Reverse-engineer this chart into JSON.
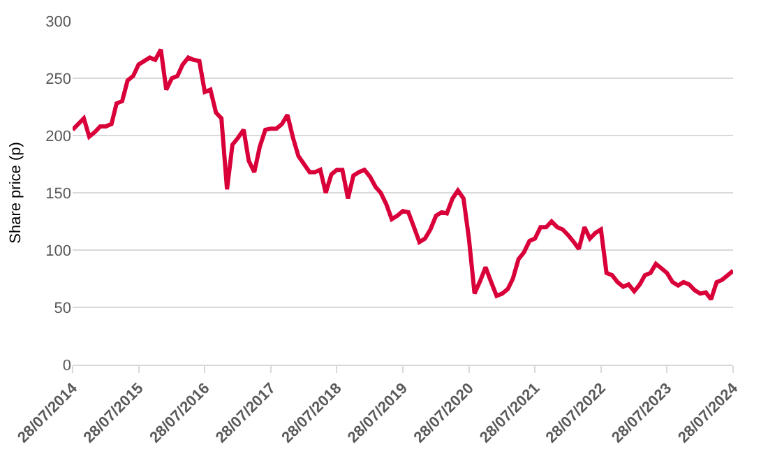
{
  "chart_data": {
    "type": "line",
    "ylabel": "Share price (p)",
    "x": [
      "2014-07-28",
      "2014-08-28",
      "2014-09-28",
      "2014-10-28",
      "2014-11-28",
      "2014-12-28",
      "2015-01-28",
      "2015-02-28",
      "2015-03-28",
      "2015-04-28",
      "2015-05-28",
      "2015-06-28",
      "2015-07-28",
      "2015-08-28",
      "2015-09-28",
      "2015-10-28",
      "2015-11-28",
      "2015-12-28",
      "2016-01-28",
      "2016-02-28",
      "2016-03-28",
      "2016-04-28",
      "2016-05-28",
      "2016-06-28",
      "2016-07-28",
      "2016-08-28",
      "2016-09-28",
      "2016-10-28",
      "2016-11-28",
      "2016-12-28",
      "2017-01-28",
      "2017-02-28",
      "2017-03-28",
      "2017-04-28",
      "2017-05-28",
      "2017-06-28",
      "2017-07-28",
      "2017-08-28",
      "2017-09-28",
      "2017-10-28",
      "2017-11-28",
      "2017-12-28",
      "2018-01-28",
      "2018-02-28",
      "2018-03-28",
      "2018-04-28",
      "2018-05-28",
      "2018-06-28",
      "2018-07-28",
      "2018-08-28",
      "2018-09-28",
      "2018-10-28",
      "2018-11-28",
      "2018-12-28",
      "2019-01-28",
      "2019-02-28",
      "2019-03-28",
      "2019-04-28",
      "2019-05-28",
      "2019-06-28",
      "2019-07-28",
      "2019-08-28",
      "2019-09-28",
      "2019-10-28",
      "2019-11-28",
      "2019-12-28",
      "2020-01-28",
      "2020-02-28",
      "2020-03-28",
      "2020-04-28",
      "2020-05-28",
      "2020-06-28",
      "2020-07-28",
      "2020-08-28",
      "2020-09-28",
      "2020-10-28",
      "2020-11-28",
      "2020-12-28",
      "2021-01-28",
      "2021-02-28",
      "2021-03-28",
      "2021-04-28",
      "2021-05-28",
      "2021-06-28",
      "2021-07-28",
      "2021-08-28",
      "2021-09-28",
      "2021-10-28",
      "2021-11-28",
      "2021-12-28",
      "2022-01-28",
      "2022-02-28",
      "2022-03-28",
      "2022-04-28",
      "2022-05-28",
      "2022-06-28",
      "2022-07-28",
      "2022-08-28",
      "2022-09-28",
      "2022-10-28",
      "2022-11-28",
      "2022-12-28",
      "2023-01-28",
      "2023-02-28",
      "2023-03-28",
      "2023-04-28",
      "2023-05-28",
      "2023-06-28",
      "2023-07-28",
      "2023-08-28",
      "2023-09-28",
      "2023-10-28",
      "2023-11-28",
      "2023-12-28",
      "2024-01-28",
      "2024-02-28",
      "2024-03-28",
      "2024-04-28",
      "2024-05-28",
      "2024-06-28",
      "2024-07-28"
    ],
    "series": [
      {
        "color": "#d9003a",
        "values": [
          205,
          210,
          215,
          199,
          203,
          208,
          208,
          210,
          228,
          230,
          248,
          252,
          262,
          265,
          268,
          266,
          275,
          240,
          250,
          252,
          262,
          268,
          266,
          265,
          238,
          240,
          220,
          215,
          153,
          192,
          198,
          205,
          178,
          168,
          190,
          205,
          206,
          206,
          210,
          218,
          198,
          182,
          175,
          168,
          168,
          170,
          150,
          166,
          170,
          170,
          145,
          165,
          168,
          170,
          164,
          155,
          150,
          140,
          127,
          130,
          134,
          133,
          120,
          107,
          110,
          118,
          130,
          133,
          132,
          145,
          152,
          145,
          110,
          62,
          73,
          85,
          72,
          60,
          62,
          66,
          75,
          92,
          98,
          108,
          110,
          120,
          120,
          125,
          120,
          118,
          113,
          107,
          101,
          120,
          110,
          115,
          118,
          80,
          78,
          72,
          68,
          70,
          64,
          70,
          78,
          80,
          88,
          84,
          80,
          72,
          69,
          72,
          70,
          65,
          62,
          63,
          57,
          72,
          74,
          78,
          82
        ]
      }
    ],
    "xlim": [
      "2014-07-28",
      "2024-07-28"
    ],
    "xticks": [
      {
        "value": "2014-07-28",
        "label": "28/07/2014"
      },
      {
        "value": "2015-07-28",
        "label": "28/07/2015"
      },
      {
        "value": "2016-07-28",
        "label": "28/07/2016"
      },
      {
        "value": "2017-07-28",
        "label": "28/07/2017"
      },
      {
        "value": "2018-07-28",
        "label": "28/07/2018"
      },
      {
        "value": "2019-07-28",
        "label": "28/07/2019"
      },
      {
        "value": "2020-07-28",
        "label": "28/07/2020"
      },
      {
        "value": "2021-07-28",
        "label": "28/07/2021"
      },
      {
        "value": "2022-07-28",
        "label": "28/07/2022"
      },
      {
        "value": "2023-07-28",
        "label": "28/07/2023"
      },
      {
        "value": "2024-07-28",
        "label": "28/07/2024"
      }
    ],
    "ylim": [
      0,
      300
    ],
    "yticks": [
      0,
      50,
      100,
      150,
      200,
      250,
      300
    ],
    "grid": "y",
    "marker": "none",
    "line_style": "solid"
  }
}
